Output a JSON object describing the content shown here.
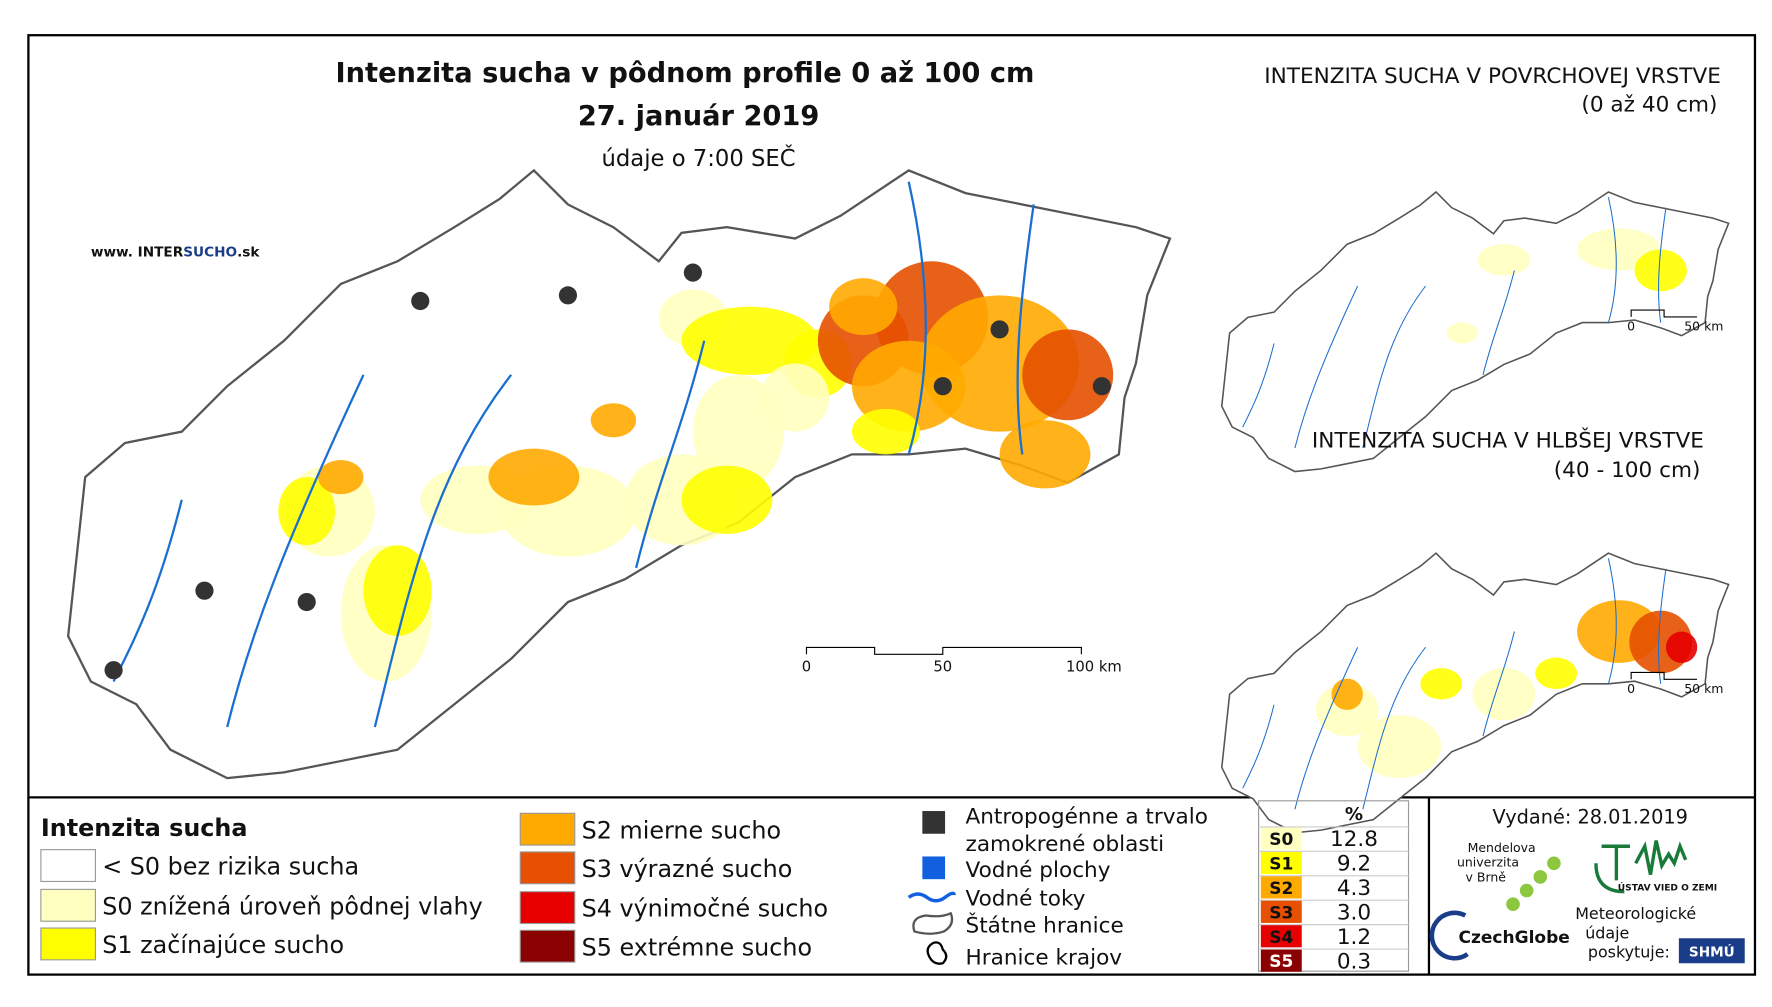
{
  "main_map": {
    "title": "Intenzita sucha v pôdnom profile 0 až 100 cm",
    "date": "27. január 2019",
    "time_note": "údaje o 7:00 SEČ",
    "website": {
      "prefix": "www. INTER",
      "highlight": "SUCHO",
      "suffix": ".sk"
    },
    "scale": [
      "0",
      "50",
      "100 km"
    ]
  },
  "insets": [
    {
      "title": "INTENZITA SUCHA V POVRCHOVEJ VRSTVE",
      "subtitle": "(0 až 40 cm)",
      "scale": [
        "0",
        "50 km"
      ]
    },
    {
      "title": "INTENZITA SUCHA V HLBŠEJ VRSTVE",
      "subtitle": "(40 - 100 cm)",
      "scale": [
        "0",
        "50 km"
      ]
    }
  ],
  "legend": {
    "title": "Intenzita sucha",
    "classes": [
      {
        "label": "< S0 bez rizika sucha",
        "color": "#ffffff"
      },
      {
        "label": "S0 znížená úroveň pôdnej vlahy",
        "color": "#ffffc0"
      },
      {
        "label": "S1 začínajúce sucho",
        "color": "#ffff00"
      },
      {
        "label": "S2 mierne sucho",
        "color": "#ffaa00"
      },
      {
        "label": "S3 výrazné sucho",
        "color": "#e65000"
      },
      {
        "label": "S4 výnimočné sucho",
        "color": "#e60000"
      },
      {
        "label": "S5 extrémne sucho",
        "color": "#8b0000"
      }
    ],
    "features": [
      {
        "label": "Antropogénne a trvalo zamokrené oblasti"
      },
      {
        "label": "Vodné plochy"
      },
      {
        "label": "Vodné toky"
      },
      {
        "label": "Štátne hranice"
      },
      {
        "label": "Hranice krajov"
      }
    ]
  },
  "stats_table": {
    "header": "%",
    "rows": [
      [
        "S0",
        "12.8"
      ],
      [
        "S1",
        "9.2"
      ],
      [
        "S2",
        "4.3"
      ],
      [
        "S3",
        "3.0"
      ],
      [
        "S4",
        "1.2"
      ],
      [
        "S5",
        "0.3"
      ]
    ]
  },
  "footer": {
    "issued": "Vydané: 28.01.2019",
    "mendel": [
      "Mendelova",
      "univerzita",
      "v Brně"
    ],
    "czechglobe": "CzechGlobe",
    "ustav": "ÚSTAV VIED O ZEMI",
    "provider": [
      "Meteorologické",
      "údaje",
      "poskytuje:"
    ],
    "shmu": "SHMÚ"
  }
}
